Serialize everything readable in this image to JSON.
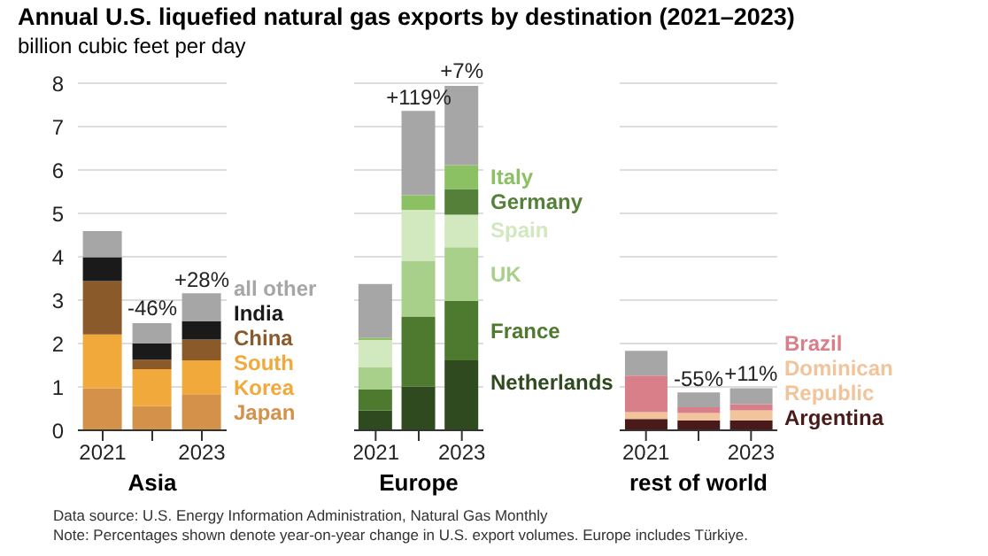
{
  "chart_data": [
    {
      "type": "bar",
      "title": "Annual U.S. liquefied natural gas exports by destination (2021–2023)",
      "subtitle": "billion cubic feet per day",
      "xlabel": "Asia",
      "categories": [
        "2021",
        null,
        "2023"
      ],
      "stacked": true,
      "ylim": [
        0,
        8
      ],
      "yticks": [
        0,
        1,
        2,
        3,
        4,
        5,
        6,
        7,
        8
      ],
      "grid": "y",
      "series": [
        {
          "name": "Japan",
          "color": "#d4914a",
          "values": [
            0.97,
            0.56,
            0.83
          ]
        },
        {
          "name": "South Korea",
          "color": "#f2a93b",
          "values": [
            1.24,
            0.85,
            0.78
          ]
        },
        {
          "name": "China",
          "color": "#8b5a2b",
          "values": [
            1.23,
            0.22,
            0.48
          ]
        },
        {
          "name": "India",
          "color": "#1a1a1a",
          "values": [
            0.55,
            0.37,
            0.42
          ]
        },
        {
          "name": "all other",
          "color": "#a6a6a6",
          "values": [
            0.6,
            0.47,
            0.65
          ]
        }
      ],
      "annotations": [
        {
          "text": "-46%",
          "y": 2.47
        },
        {
          "text": "+28%",
          "y": 3.16
        }
      ]
    },
    {
      "type": "bar",
      "xlabel": "Europe",
      "categories": [
        "2021",
        null,
        "2023"
      ],
      "stacked": true,
      "ylim": [
        0,
        8
      ],
      "yticks": [
        0,
        1,
        2,
        3,
        4,
        5,
        6,
        7,
        8
      ],
      "grid": "y",
      "tick_labels": "x",
      "series": [
        {
          "name": "Netherlands",
          "color": "#2f4a1e",
          "values": [
            0.46,
            1.01,
            1.61
          ]
        },
        {
          "name": "France",
          "color": "#4e7a2f",
          "values": [
            0.48,
            1.61,
            1.37
          ]
        },
        {
          "name": "UK",
          "color": "#a8d08a",
          "values": [
            0.52,
            1.29,
            1.24
          ]
        },
        {
          "name": "Spain",
          "color": "#d2e8bf",
          "values": [
            0.62,
            1.17,
            0.75
          ]
        },
        {
          "name": "Germany",
          "color": "#55803a",
          "values": [
            0,
            0,
            0.59
          ]
        },
        {
          "name": "Italy",
          "color": "#8cc163",
          "values": [
            0.05,
            0.34,
            0.55
          ]
        },
        {
          "color": "#a6a6a6",
          "values": [
            1.24,
            1.94,
            1.83
          ]
        }
      ],
      "annotations": [
        {
          "text": "+119%",
          "y": 7.36
        },
        {
          "text": "+7%",
          "y": 7.94
        }
      ]
    },
    {
      "type": "bar",
      "xlabel": "rest of world",
      "categories": [
        "2021",
        null,
        "2023"
      ],
      "stacked": true,
      "ylim": [
        0,
        8
      ],
      "yticks": [
        0,
        1,
        2,
        3,
        4,
        5,
        6,
        7,
        8
      ],
      "grid": "y",
      "tick_labels": "x",
      "series": [
        {
          "name": "Argentina",
          "color": "#4a1a1a",
          "values": [
            0.26,
            0.23,
            0.23
          ]
        },
        {
          "name": "Dominican Republic",
          "color": "#f2c49b",
          "values": [
            0.16,
            0.17,
            0.23
          ]
        },
        {
          "name": "Brazil",
          "color": "#d97f8a",
          "values": [
            0.84,
            0.13,
            0.14
          ]
        },
        {
          "color": "#a6a6a6",
          "values": [
            0.57,
            0.34,
            0.37
          ]
        }
      ],
      "annotations": [
        {
          "text": "-55%",
          "y": 0.87
        },
        {
          "text": "+11%",
          "y": 0.97
        },
        "Data source: U.S. Energy Information Administration, Natural Gas Monthly",
        "Note: Percentages shown denote year-on-year change in U.S. export volumes. Europe includes Türkiye."
      ]
    }
  ]
}
